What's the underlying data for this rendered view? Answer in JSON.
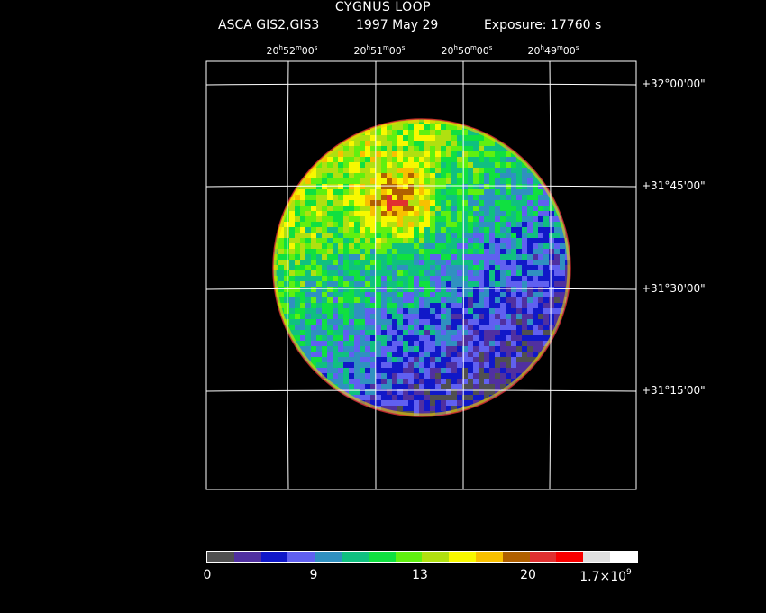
{
  "header": {
    "title": "CYGNUS LOOP",
    "instrument": "ASCA GIS2,GIS3",
    "date": "1997 May 29",
    "exposure": "Exposure: 17760 s"
  },
  "chart_data": {
    "type": "heatmap",
    "x_ticks": [
      {
        "h": "20",
        "m": "52",
        "s": "00"
      },
      {
        "h": "20",
        "m": "51",
        "s": "00"
      },
      {
        "h": "20",
        "m": "50",
        "s": "00"
      },
      {
        "h": "20",
        "m": "49",
        "s": "00"
      }
    ],
    "y_ticks": [
      "+32°00'00\"",
      "+31°45'00\"",
      "+31°30'00\"",
      "+31°15'00\""
    ],
    "grid": true,
    "colorbar": {
      "labels": [
        "0",
        "9",
        "13",
        "20",
        "1.7×10"
      ],
      "top_exponent": "9",
      "colors": [
        "#505050",
        "#5030a0",
        "#1018c8",
        "#6060f0",
        "#3090c0",
        "#10c080",
        "#10e040",
        "#60f010",
        "#b0e010",
        "#f8f800",
        "#f8c000",
        "#b06000",
        "#e03030",
        "#f80000",
        "#e0e0e0",
        "#ffffff"
      ]
    }
  }
}
